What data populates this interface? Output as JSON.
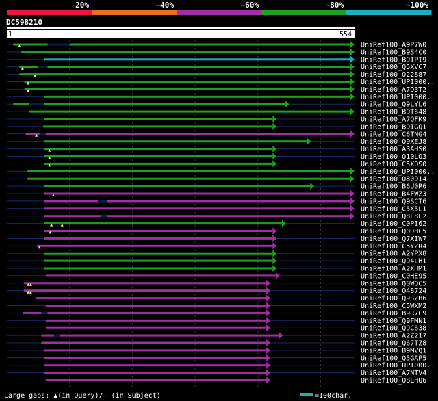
{
  "query": {
    "id": "DC598210",
    "start_label": "1",
    "end_label": "554",
    "length": 554
  },
  "identity_legend": [
    {
      "label": "20%",
      "color": "#e8193c"
    },
    {
      "label": "~40%",
      "color": "#e8701e"
    },
    {
      "label": "~60%",
      "color": "#a22ea6"
    },
    {
      "label": "~80%",
      "color": "#1ea01e"
    },
    {
      "label": "~100%",
      "color": "#1ab0c0"
    }
  ],
  "footer": {
    "gaps_text": "Large gaps: ▲(in Query)/– (in Subject)",
    "scale_text": "=100char.",
    "scale_color": "#1ab0c0"
  },
  "hits": [
    {
      "name": "UniRef100_A9P7W0",
      "tier": 3,
      "start": 10,
      "end": 554,
      "arrow": true,
      "tail": 30,
      "gaps": [
        10
      ],
      "subj": [
        [
          55,
          35
        ]
      ]
    },
    {
      "name": "UniRef100_B9S4C0",
      "tier": 3,
      "start": 23,
      "end": 554,
      "arrow": true,
      "tail": 20,
      "gaps": [],
      "subj": []
    },
    {
      "name": "UniRef100_B9IPI9",
      "tier": 4,
      "start": 60,
      "end": 554,
      "arrow": true,
      "tail": 0,
      "gaps": [],
      "subj": []
    },
    {
      "name": "UniRef100_Q5XVC7",
      "tier": 3,
      "start": 20,
      "end": 554,
      "arrow": true,
      "tail": 0,
      "gaps": [
        5
      ],
      "subj": [
        [
          30,
          15
        ]
      ]
    },
    {
      "name": "UniRef100_O22887",
      "tier": 3,
      "start": 20,
      "end": 554,
      "arrow": true,
      "tail": 0,
      "gaps": [
        25
      ],
      "subj": []
    },
    {
      "name": "UniRef100_UPI000..1",
      "tier": 3,
      "start": 28,
      "end": 554,
      "arrow": true,
      "tail": 0,
      "gaps": [
        6
      ],
      "subj": []
    },
    {
      "name": "UniRef100_A7Q3T2",
      "tier": 3,
      "start": 28,
      "end": 554,
      "arrow": true,
      "tail": 0,
      "gaps": [
        6
      ],
      "subj": []
    },
    {
      "name": "UniRef100_UPI000..2",
      "tier": 3,
      "start": 60,
      "end": 554,
      "arrow": true,
      "tail": 0,
      "gaps": [],
      "subj": []
    },
    {
      "name": "UniRef100_Q9LYL6",
      "tier": 3,
      "start": 10,
      "end": 450,
      "arrow": true,
      "tail": 0,
      "gaps": [],
      "subj": [
        [
          25,
          25
        ]
      ]
    },
    {
      "name": "UniRef100_B9T648",
      "tier": 3,
      "start": 35,
      "end": 554,
      "arrow": true,
      "tail": 0,
      "gaps": [],
      "subj": []
    },
    {
      "name": "UniRef100_A7QFK9",
      "tier": 3,
      "start": 60,
      "end": 430,
      "arrow": true,
      "tail": 0,
      "gaps": [],
      "subj": []
    },
    {
      "name": "UniRef100_B9IGQ1",
      "tier": 3,
      "start": 58,
      "end": 430,
      "arrow": true,
      "tail": 0,
      "gaps": [],
      "subj": []
    },
    {
      "name": "UniRef100_C6TNG4",
      "tier": 2,
      "start": 30,
      "end": 554,
      "arrow": true,
      "tail": 0,
      "gaps": [
        17
      ],
      "subj": [
        [
          22,
          10
        ]
      ]
    },
    {
      "name": "UniRef100_Q9XEJ8",
      "tier": 3,
      "start": 60,
      "end": 485,
      "arrow": true,
      "tail": 0,
      "gaps": [],
      "subj": []
    },
    {
      "name": "UniRef100_A3AHS0",
      "tier": 3,
      "start": 60,
      "end": 430,
      "arrow": true,
      "tail": 0,
      "gaps": [
        8
      ],
      "subj": []
    },
    {
      "name": "UniRef100_Q10LQ3",
      "tier": 3,
      "start": 60,
      "end": 430,
      "arrow": true,
      "tail": 0,
      "gaps": [
        8
      ],
      "subj": []
    },
    {
      "name": "UniRef100_C5XOS0",
      "tier": 3,
      "start": 60,
      "end": 430,
      "arrow": true,
      "tail": 0,
      "gaps": [
        8
      ],
      "subj": []
    },
    {
      "name": "UniRef100_UPI000..3",
      "tier": 3,
      "start": 33,
      "end": 554,
      "arrow": true,
      "tail": 0,
      "gaps": [],
      "subj": []
    },
    {
      "name": "UniRef100_O80914",
      "tier": 3,
      "start": 33,
      "end": 554,
      "arrow": true,
      "tail": 0,
      "gaps": [],
      "subj": []
    },
    {
      "name": "UniRef100_B6U0R6",
      "tier": 3,
      "start": 60,
      "end": 490,
      "arrow": true,
      "tail": 0,
      "gaps": [],
      "subj": []
    },
    {
      "name": "UniRef100_B4FWZ3",
      "tier": 2,
      "start": 60,
      "end": 554,
      "arrow": true,
      "tail": 0,
      "gaps": [
        14
      ],
      "subj": []
    },
    {
      "name": "UniRef100_Q9SCT6",
      "tier": 2,
      "start": 60,
      "end": 554,
      "arrow": true,
      "tail": 0,
      "gaps": [],
      "subj": [
        [
          85,
          15
        ]
      ]
    },
    {
      "name": "UniRef100_C5X5L1",
      "tier": 2,
      "start": 60,
      "end": 554,
      "arrow": true,
      "tail": 0,
      "gaps": [],
      "subj": []
    },
    {
      "name": "UniRef100_Q8L8L2",
      "tier": 2,
      "start": 60,
      "end": 554,
      "arrow": true,
      "tail": 0,
      "gaps": [],
      "subj": [
        [
          90,
          10
        ]
      ]
    },
    {
      "name": "UniRef100_C0PI62",
      "tier": 3,
      "start": 60,
      "end": 445,
      "arrow": true,
      "tail": 0,
      "gaps": [
        11,
        28
      ],
      "subj": []
    },
    {
      "name": "UniRef100_Q0DHC5",
      "tier": 2,
      "start": 60,
      "end": 430,
      "arrow": true,
      "tail": 0,
      "gaps": [
        9
      ],
      "subj": []
    },
    {
      "name": "UniRef100_Q7XIW7",
      "tier": 2,
      "start": 60,
      "end": 430,
      "arrow": true,
      "tail": 0,
      "gaps": [],
      "subj": []
    },
    {
      "name": "UniRef100_C5YZR4",
      "tier": 2,
      "start": 48,
      "end": 430,
      "arrow": true,
      "tail": 0,
      "gaps": [
        4
      ],
      "subj": []
    },
    {
      "name": "UniRef100_A2YPX8",
      "tier": 3,
      "start": 60,
      "end": 430,
      "arrow": true,
      "tail": 0,
      "gaps": [],
      "subj": []
    },
    {
      "name": "UniRef100_Q94LH1",
      "tier": 3,
      "start": 60,
      "end": 430,
      "arrow": true,
      "tail": 0,
      "gaps": [],
      "subj": []
    },
    {
      "name": "UniRef100_A2XHM1",
      "tier": 3,
      "start": 60,
      "end": 430,
      "arrow": true,
      "tail": 0,
      "gaps": [],
      "subj": []
    },
    {
      "name": "UniRef100_C0HE95",
      "tier": 2,
      "start": 62,
      "end": 435,
      "arrow": true,
      "tail": 0,
      "gaps": [],
      "subj": []
    },
    {
      "name": "UniRef100_Q0WQC5",
      "tier": 2,
      "start": 27,
      "end": 420,
      "arrow": true,
      "tail": 0,
      "gaps": [
        7,
        11
      ],
      "subj": []
    },
    {
      "name": "UniRef100_O48724",
      "tier": 2,
      "start": 27,
      "end": 420,
      "arrow": true,
      "tail": 0,
      "gaps": [
        7,
        11
      ],
      "subj": []
    },
    {
      "name": "UniRef100_Q9SZB6",
      "tier": 2,
      "start": 47,
      "end": 420,
      "arrow": true,
      "tail": 0,
      "gaps": [],
      "subj": []
    },
    {
      "name": "UniRef100_C5WXM2",
      "tier": 2,
      "start": 62,
      "end": 420,
      "arrow": true,
      "tail": 0,
      "gaps": [],
      "subj": []
    },
    {
      "name": "UniRef100_B9R7C9",
      "tier": 2,
      "start": 25,
      "end": 420,
      "arrow": true,
      "tail": 0,
      "gaps": [],
      "subj": [
        [
          30,
          10
        ]
      ]
    },
    {
      "name": "UniRef100_Q9FMN1",
      "tier": 2,
      "start": 62,
      "end": 420,
      "arrow": true,
      "tail": 0,
      "gaps": [],
      "subj": []
    },
    {
      "name": "UniRef100_Q9C638",
      "tier": 2,
      "start": 62,
      "end": 420,
      "arrow": true,
      "tail": 0,
      "gaps": [],
      "subj": []
    },
    {
      "name": "UniRef100_A2Z217",
      "tier": 2,
      "start": 55,
      "end": 440,
      "arrow": true,
      "tail": 0,
      "gaps": [],
      "subj": [
        [
          20,
          10
        ]
      ]
    },
    {
      "name": "UniRef100_Q67TZ8",
      "tier": 2,
      "start": 55,
      "end": 420,
      "arrow": true,
      "tail": 0,
      "gaps": [],
      "subj": []
    },
    {
      "name": "UniRef100_B9MVQ1",
      "tier": 2,
      "start": 60,
      "end": 420,
      "arrow": true,
      "tail": 0,
      "gaps": [],
      "subj": []
    },
    {
      "name": "UniRef100_Q5GAP5",
      "tier": 2,
      "start": 60,
      "end": 420,
      "arrow": true,
      "tail": 0,
      "gaps": [],
      "subj": []
    },
    {
      "name": "UniRef100_UPI000..4",
      "tier": 2,
      "start": 60,
      "end": 420,
      "arrow": true,
      "tail": 0,
      "gaps": [],
      "subj": []
    },
    {
      "name": "UniRef100_A7NTV4",
      "tier": 2,
      "start": 60,
      "end": 420,
      "arrow": true,
      "tail": 0,
      "gaps": [],
      "subj": []
    },
    {
      "name": "UniRef100_Q8LHQ6",
      "tier": 2,
      "start": 62,
      "end": 420,
      "arrow": true,
      "tail": 0,
      "gaps": [],
      "subj": []
    }
  ],
  "display_names": {
    "UniRef100_UPI000..1": "UniRef100_UPI000..",
    "UniRef100_UPI000..2": "UniRef100_UPI000..",
    "UniRef100_UPI000..3": "UniRef100_UPI000..",
    "UniRef100_UPI000..4": "UniRef100_UPI000.."
  }
}
